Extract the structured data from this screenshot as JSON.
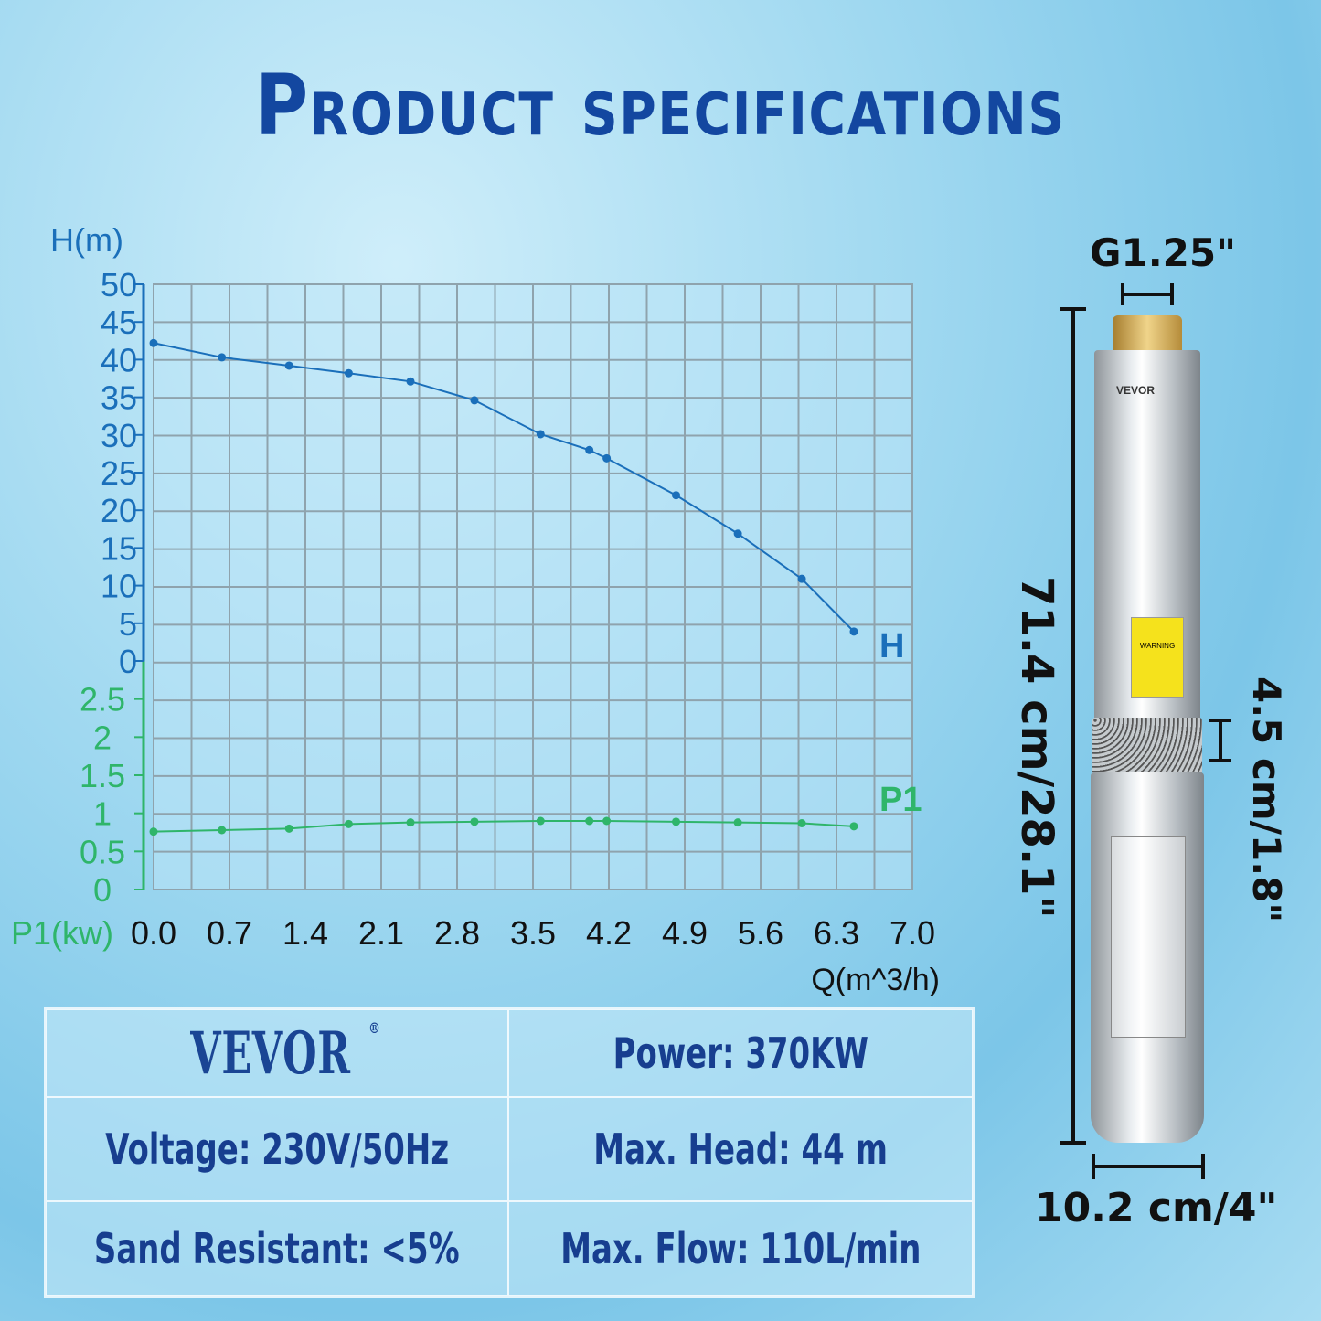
{
  "title": "Product specifications",
  "chart_data": {
    "type": "line",
    "xlabel": "Q(m^3/h)",
    "ylabel_top": "H(m)",
    "ylabel_bottom": "P1(kw)",
    "x_ticks": [
      "0.0",
      "0.7",
      "1.4",
      "2.1",
      "2.8",
      "3.5",
      "4.2",
      "4.9",
      "5.6",
      "6.3",
      "7.0"
    ],
    "xlim": [
      0,
      7
    ],
    "h_ticks": [
      "50",
      "45",
      "40",
      "35",
      "30",
      "25",
      "20",
      "15",
      "10",
      "5",
      "0"
    ],
    "p_ticks": [
      "2.5",
      "2",
      "1.5",
      "1",
      "0.5",
      "0"
    ],
    "h_ylim": [
      0,
      50
    ],
    "p_ylim": [
      0,
      3
    ],
    "grid": true,
    "series": [
      {
        "name": "H",
        "color": "#1a6fba",
        "x": [
          0,
          0.63,
          1.25,
          1.8,
          2.37,
          2.96,
          3.57,
          4.02,
          4.18,
          4.82,
          5.39,
          5.98,
          6.46
        ],
        "y": [
          42.2,
          40.3,
          39.2,
          38.2,
          37.1,
          34.6,
          30.1,
          28.0,
          26.9,
          22.0,
          16.9,
          10.9,
          3.9
        ]
      },
      {
        "name": "P1",
        "color": "#2fb56a",
        "x": [
          0,
          0.63,
          1.25,
          1.8,
          2.37,
          2.96,
          3.57,
          4.02,
          4.18,
          4.82,
          5.39,
          5.98,
          6.46
        ],
        "y": [
          0.76,
          0.78,
          0.8,
          0.86,
          0.88,
          0.89,
          0.9,
          0.9,
          0.9,
          0.89,
          0.88,
          0.87,
          0.83
        ]
      }
    ]
  },
  "specs": {
    "brand": "VEVOR",
    "power": "Power: 370KW",
    "voltage": "Voltage: 230V/50Hz",
    "head": "Max. Head: 44 m",
    "sand": "Sand Resistant: <5%",
    "flow": "Max. Flow: 110L/min"
  },
  "dimensions": {
    "outlet": "G1.25\"",
    "length": "71.4 cm/28.1\"",
    "inlet": "4.5 cm/1.8\"",
    "diameter": "10.2 cm/4\""
  },
  "pump_label": {
    "brand": "VEVOR",
    "warning": "WARNING"
  }
}
